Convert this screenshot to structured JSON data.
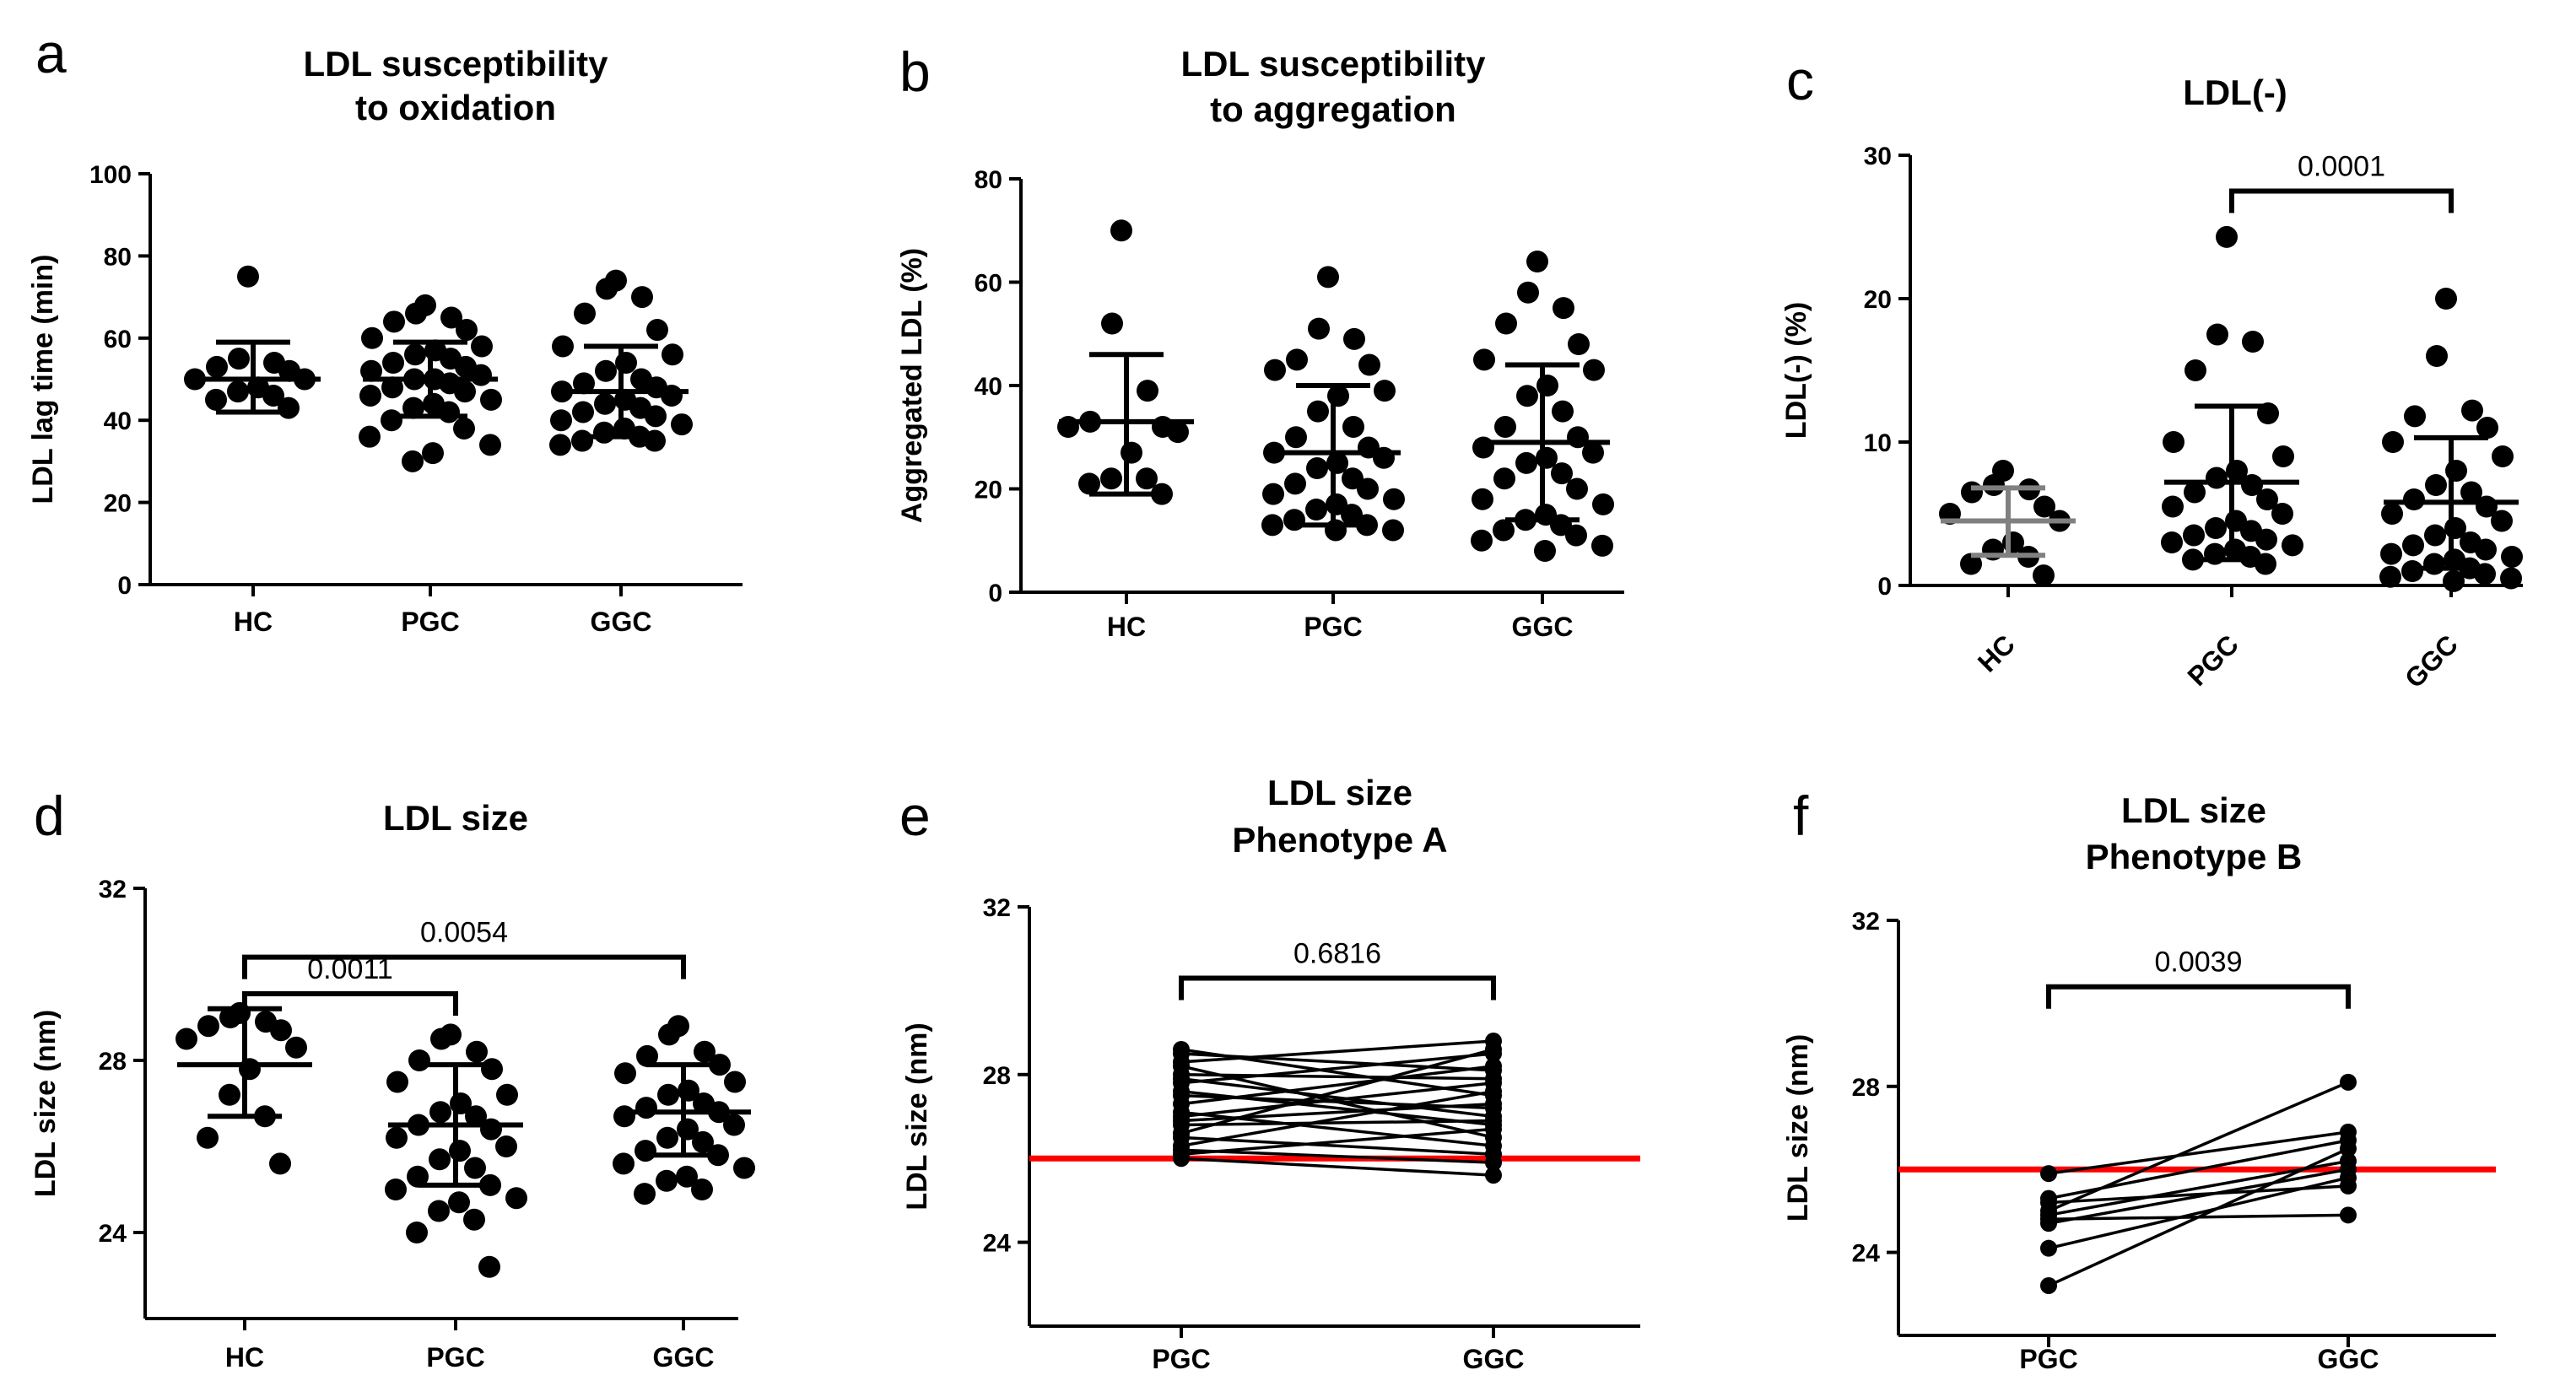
{
  "chart_data": [
    {
      "panel": "a",
      "type": "scatter",
      "title_lines": [
        "LDL susceptibility",
        "to oxidation"
      ],
      "ylabel": "LDL lag time (min)",
      "ylim": [
        0,
        100
      ],
      "yticks": [
        0,
        20,
        40,
        60,
        80,
        100
      ],
      "categories": [
        "HC",
        "PGC",
        "GGC"
      ],
      "groups": [
        {
          "name": "HC",
          "mean": 50,
          "sd_low": 42,
          "sd_high": 59,
          "points": [
            75,
            55,
            54,
            53,
            52,
            50,
            50,
            48,
            47,
            46,
            45,
            43
          ]
        },
        {
          "name": "PGC",
          "mean": 50,
          "sd_low": 41,
          "sd_high": 59,
          "points": [
            68,
            66,
            65,
            64,
            62,
            60,
            58,
            57,
            56,
            55,
            54,
            53,
            52,
            51,
            50,
            50,
            49,
            48,
            47,
            46,
            45,
            44,
            43,
            42,
            40,
            38,
            36,
            34,
            32,
            30
          ]
        },
        {
          "name": "GGC",
          "mean": 47,
          "sd_low": 36,
          "sd_high": 58,
          "points": [
            74,
            72,
            70,
            66,
            62,
            58,
            56,
            54,
            52,
            50,
            49,
            48,
            47,
            46,
            45,
            44,
            43,
            42,
            41,
            40,
            39,
            38,
            37,
            36,
            35,
            35,
            34
          ]
        }
      ],
      "comparisons": []
    },
    {
      "panel": "b",
      "type": "scatter",
      "title_lines": [
        "LDL susceptibility",
        "to aggregation"
      ],
      "ylabel": "Aggregated LDL (%)",
      "ylim": [
        0,
        80
      ],
      "yticks": [
        0,
        20,
        40,
        60,
        80
      ],
      "categories": [
        "HC",
        "PGC",
        "GGC"
      ],
      "groups": [
        {
          "name": "HC",
          "mean": 33,
          "sd_low": 19,
          "sd_high": 46,
          "points": [
            70,
            52,
            39,
            33,
            32,
            32,
            31,
            27,
            22,
            22,
            21,
            19
          ]
        },
        {
          "name": "PGC",
          "mean": 27,
          "sd_low": 13,
          "sd_high": 40,
          "points": [
            61,
            51,
            49,
            45,
            44,
            43,
            39,
            38,
            35,
            32,
            30,
            28,
            27,
            26,
            25,
            24,
            22,
            21,
            20,
            19,
            18,
            17,
            16,
            15,
            14,
            13,
            13,
            12,
            12
          ]
        },
        {
          "name": "GGC",
          "mean": 29,
          "sd_low": 14,
          "sd_high": 44,
          "points": [
            64,
            58,
            55,
            52,
            48,
            45,
            43,
            40,
            38,
            35,
            32,
            30,
            28,
            27,
            26,
            25,
            23,
            22,
            20,
            18,
            17,
            15,
            14,
            13,
            12,
            11,
            10,
            9,
            8
          ]
        }
      ],
      "comparisons": []
    },
    {
      "panel": "c",
      "type": "scatter",
      "title_lines": [
        "LDL(-)"
      ],
      "ylabel": "LDL(-) (%)",
      "ylim": [
        0,
        30
      ],
      "yticks": [
        0,
        10,
        20,
        30
      ],
      "categories": [
        "HC",
        "PGC",
        "GGC"
      ],
      "rotated_categories": true,
      "groups": [
        {
          "name": "HC",
          "mean": 4.5,
          "sd_low": 2.1,
          "sd_high": 6.8,
          "err_color": "#808080",
          "points": [
            8.0,
            7.0,
            6.7,
            6.5,
            5.5,
            5.0,
            4.5,
            3.0,
            2.5,
            2.0,
            1.5,
            0.7
          ]
        },
        {
          "name": "PGC",
          "mean": 7.2,
          "sd_low": 1.8,
          "sd_high": 12.5,
          "points": [
            24.3,
            17.5,
            17.0,
            15.0,
            12.0,
            10.0,
            9.0,
            8.0,
            7.5,
            7.0,
            6.5,
            6.0,
            5.5,
            5.0,
            4.5,
            4.0,
            3.8,
            3.5,
            3.2,
            3.0,
            2.8,
            2.5,
            2.2,
            2.0,
            1.8,
            1.5
          ]
        },
        {
          "name": "GGC",
          "mean": 5.8,
          "sd_low": 1.2,
          "sd_high": 10.3,
          "points": [
            20.0,
            16.0,
            12.2,
            11.8,
            11.0,
            10.0,
            9.0,
            8.0,
            7.0,
            6.5,
            6.0,
            5.5,
            5.0,
            4.5,
            4.0,
            3.5,
            3.0,
            2.8,
            2.5,
            2.2,
            2.0,
            1.8,
            1.5,
            1.2,
            1.0,
            0.8,
            0.6,
            0.5,
            0.3
          ]
        }
      ],
      "comparisons": [
        {
          "from": 1,
          "to": 2,
          "label": "0.0001",
          "y": 27.5
        }
      ]
    },
    {
      "panel": "d",
      "type": "scatter",
      "title_lines": [
        "LDL size"
      ],
      "ylabel": "LDL size (nm)",
      "ylim": [
        22,
        32
      ],
      "yticks": [
        24,
        28,
        32
      ],
      "categories": [
        "HC",
        "PGC",
        "GGC"
      ],
      "groups": [
        {
          "name": "HC",
          "mean": 27.9,
          "sd_low": 26.7,
          "sd_high": 29.2,
          "points": [
            29.1,
            29.0,
            28.9,
            28.8,
            28.7,
            28.5,
            28.3,
            27.8,
            27.2,
            26.7,
            26.2,
            25.6
          ]
        },
        {
          "name": "PGC",
          "mean": 26.5,
          "sd_low": 25.1,
          "sd_high": 27.9,
          "points": [
            28.6,
            28.5,
            28.2,
            28.0,
            27.8,
            27.5,
            27.2,
            27.0,
            26.8,
            26.7,
            26.5,
            26.4,
            26.2,
            26.0,
            25.9,
            25.7,
            25.5,
            25.3,
            25.1,
            25.0,
            24.8,
            24.7,
            24.5,
            24.3,
            24.0,
            23.2
          ]
        },
        {
          "name": "GGC",
          "mean": 26.8,
          "sd_low": 25.8,
          "sd_high": 27.9,
          "points": [
            28.8,
            28.6,
            28.2,
            28.1,
            27.9,
            27.7,
            27.5,
            27.3,
            27.2,
            27.0,
            26.9,
            26.8,
            26.7,
            26.5,
            26.4,
            26.2,
            26.1,
            25.9,
            25.8,
            25.6,
            25.5,
            25.3,
            25.2,
            25.0,
            24.9
          ]
        }
      ],
      "comparisons": [
        {
          "from": 0,
          "to": 1,
          "label": "0.0011",
          "y": 29.2,
          "bracket_base": 29.55
        },
        {
          "from": 0,
          "to": 2,
          "label": "0.0054",
          "y": 30.7,
          "bracket_base": 30.4
        }
      ]
    },
    {
      "panel": "e",
      "type": "line",
      "title_lines": [
        "LDL size",
        "Phenotype A"
      ],
      "ylabel": "LDL size (nm)",
      "ylim": [
        22,
        32
      ],
      "yticks": [
        24,
        28,
        32
      ],
      "categories": [
        "PGC",
        "GGC"
      ],
      "reference_line": {
        "y": 26.0,
        "color": "#ff0000"
      },
      "pairs": [
        [
          28.6,
          27.5
        ],
        [
          28.5,
          28.1
        ],
        [
          28.3,
          28.8
        ],
        [
          28.2,
          26.5
        ],
        [
          28.0,
          27.9
        ],
        [
          27.9,
          27.0
        ],
        [
          27.8,
          28.5
        ],
        [
          27.6,
          26.8
        ],
        [
          27.5,
          27.2
        ],
        [
          27.3,
          28.2
        ],
        [
          27.1,
          26.3
        ],
        [
          27.0,
          27.8
        ],
        [
          26.9,
          27.3
        ],
        [
          26.8,
          26.9
        ],
        [
          26.6,
          28.6
        ],
        [
          26.5,
          26.1
        ],
        [
          26.3,
          27.6
        ],
        [
          26.2,
          25.9
        ],
        [
          26.1,
          26.7
        ],
        [
          26.0,
          25.6
        ]
      ],
      "comparisons": [
        {
          "from": 0,
          "to": 1,
          "label": "0.6816",
          "y": 30.3
        }
      ]
    },
    {
      "panel": "f",
      "type": "line",
      "title_lines": [
        "LDL size",
        "Phenotype B"
      ],
      "ylabel": "LDL size (nm)",
      "ylim": [
        22,
        32
      ],
      "yticks": [
        24,
        28,
        32
      ],
      "categories": [
        "PGC",
        "GGC"
      ],
      "reference_line": {
        "y": 26.0,
        "color": "#ff0000"
      },
      "pairs": [
        [
          25.9,
          26.9
        ],
        [
          25.3,
          26.7
        ],
        [
          25.2,
          25.6
        ],
        [
          25.0,
          28.1
        ],
        [
          24.9,
          26.2
        ],
        [
          24.8,
          24.9
        ],
        [
          24.7,
          26.0
        ],
        [
          24.1,
          25.8
        ],
        [
          23.2,
          26.5
        ]
      ],
      "comparisons": [
        {
          "from": 0,
          "to": 1,
          "label": "0.0039",
          "y": 30.4
        }
      ]
    }
  ]
}
